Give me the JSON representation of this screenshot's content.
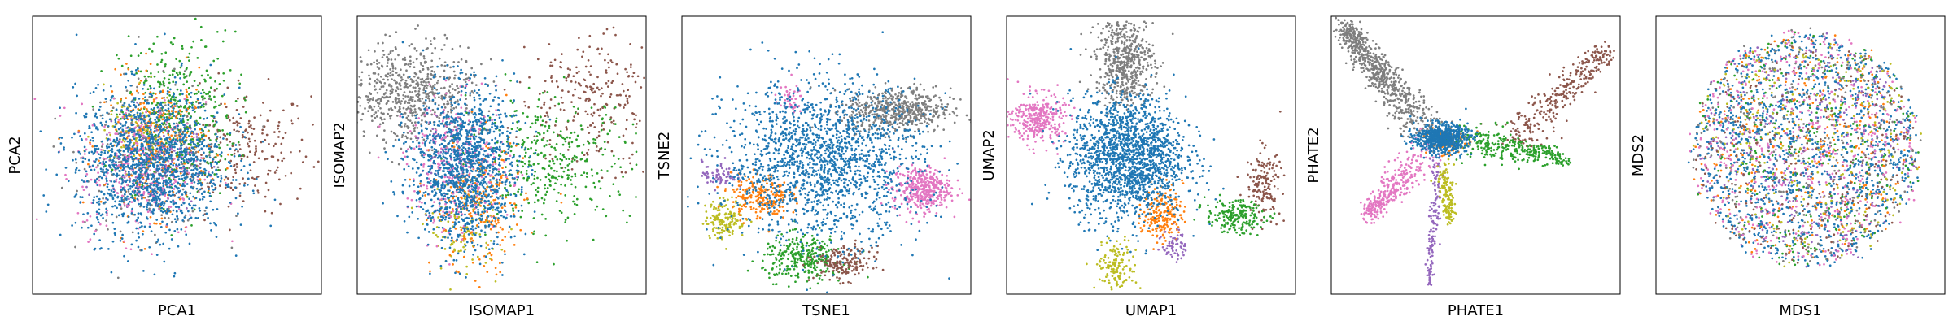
{
  "figure": {
    "palette": {
      "blue": "#1f77b4",
      "orange": "#ff7f0e",
      "green": "#2ca02c",
      "purple": "#9467bd",
      "brown": "#8c564b",
      "pink": "#e377c2",
      "gray": "#7f7f7f",
      "olive": "#bcbd22"
    }
  },
  "chart_data": [
    {
      "type": "scatter",
      "title": "",
      "xlabel": "PCA1",
      "ylabel": "PCA2",
      "xlim": [
        0,
        10
      ],
      "ylim": [
        0,
        10
      ],
      "grid": false,
      "legend": "none",
      "ticks": "hidden",
      "clusters": [
        {
          "color": "brown",
          "cx": 7.2,
          "cy": 5.2,
          "sx": 1.2,
          "sy": 1.1,
          "n": 240
        },
        {
          "color": "gray",
          "cx": 4.2,
          "cy": 5.0,
          "sx": 1.2,
          "sy": 1.3,
          "n": 300
        },
        {
          "color": "green",
          "cx": 5.0,
          "cy": 6.4,
          "sx": 1.0,
          "sy": 1.5,
          "n": 420
        },
        {
          "color": "orange",
          "cx": 4.3,
          "cy": 5.4,
          "sx": 0.9,
          "sy": 1.2,
          "n": 330
        },
        {
          "color": "olive",
          "cx": 3.5,
          "cy": 5.8,
          "sx": 0.7,
          "sy": 0.7,
          "n": 90
        },
        {
          "color": "purple",
          "cx": 4.0,
          "cy": 4.8,
          "sx": 0.8,
          "sy": 0.8,
          "n": 130
        },
        {
          "color": "pink",
          "cx": 3.8,
          "cy": 4.5,
          "sx": 1.1,
          "sy": 1.2,
          "n": 320
        },
        {
          "color": "blue",
          "cx": 4.1,
          "cy": 4.7,
          "sx": 1.3,
          "sy": 1.3,
          "n": 1400
        }
      ]
    },
    {
      "type": "scatter",
      "title": "",
      "xlabel": "ISOMAP1",
      "ylabel": "ISOMAP2",
      "xlim": [
        0,
        10
      ],
      "ylim": [
        0,
        10
      ],
      "grid": false,
      "legend": "none",
      "ticks": "hidden",
      "clusters": [
        {
          "color": "gray",
          "cx": 1.9,
          "cy": 7.2,
          "sx": 1.1,
          "sy": 0.9,
          "n": 650
        },
        {
          "color": "brown",
          "cx": 8.0,
          "cy": 7.0,
          "sx": 1.2,
          "sy": 1.2,
          "n": 260
        },
        {
          "color": "green",
          "cx": 6.7,
          "cy": 4.8,
          "sx": 1.4,
          "sy": 1.1,
          "n": 380
        },
        {
          "color": "olive",
          "cx": 3.7,
          "cy": 2.4,
          "sx": 0.6,
          "sy": 0.8,
          "n": 120
        },
        {
          "color": "orange",
          "cx": 4.2,
          "cy": 3.2,
          "sx": 0.8,
          "sy": 1.2,
          "n": 260
        },
        {
          "color": "purple",
          "cx": 3.2,
          "cy": 5.0,
          "sx": 0.6,
          "sy": 0.6,
          "n": 60
        },
        {
          "color": "pink",
          "cx": 3.5,
          "cy": 4.6,
          "sx": 0.9,
          "sy": 1.2,
          "n": 300
        },
        {
          "color": "blue",
          "cx": 3.7,
          "cy": 4.6,
          "sx": 0.9,
          "sy": 1.4,
          "n": 1300
        }
      ]
    },
    {
      "type": "scatter",
      "title": "",
      "xlabel": "TSNE1",
      "ylabel": "TSNE2",
      "xlim": [
        0,
        10
      ],
      "ylim": [
        0,
        10
      ],
      "grid": false,
      "legend": "none",
      "ticks": "hidden",
      "clusters": [
        {
          "color": "gray",
          "cx": 7.5,
          "cy": 6.6,
          "sx": 0.9,
          "sy": 0.4,
          "n": 550
        },
        {
          "color": "pink",
          "cx": 8.3,
          "cy": 3.8,
          "sx": 0.5,
          "sy": 0.4,
          "n": 400
        },
        {
          "color": "pink",
          "cx": 3.7,
          "cy": 7.0,
          "sx": 0.25,
          "sy": 0.25,
          "n": 40
        },
        {
          "color": "purple",
          "cx": 1.3,
          "cy": 4.3,
          "sx": 0.3,
          "sy": 0.25,
          "n": 70
        },
        {
          "color": "olive",
          "cx": 1.5,
          "cy": 2.7,
          "sx": 0.35,
          "sy": 0.35,
          "n": 150
        },
        {
          "color": "orange",
          "cx": 2.7,
          "cy": 3.5,
          "sx": 0.5,
          "sy": 0.4,
          "n": 220
        },
        {
          "color": "green",
          "cx": 4.2,
          "cy": 1.3,
          "sx": 0.7,
          "sy": 0.4,
          "n": 300
        },
        {
          "color": "brown",
          "cx": 5.6,
          "cy": 1.1,
          "sx": 0.5,
          "sy": 0.3,
          "n": 180
        },
        {
          "color": "blue",
          "cx": 4.9,
          "cy": 4.8,
          "sx": 1.7,
          "sy": 1.4,
          "n": 1700
        }
      ]
    },
    {
      "type": "scatter",
      "title": "",
      "xlabel": "UMAP1",
      "ylabel": "UMAP2",
      "xlim": [
        0,
        10
      ],
      "ylim": [
        0,
        10
      ],
      "grid": false,
      "legend": "none",
      "ticks": "hidden",
      "clusters": [
        {
          "color": "gray",
          "cx": 4.1,
          "cy": 8.4,
          "sx": 0.5,
          "sy": 0.8,
          "n": 560
        },
        {
          "color": "pink",
          "cx": 1.1,
          "cy": 6.3,
          "sx": 0.45,
          "sy": 0.45,
          "n": 320
        },
        {
          "color": "brown",
          "cx": 8.9,
          "cy": 4.0,
          "sx": 0.3,
          "sy": 0.6,
          "n": 150
        },
        {
          "color": "green",
          "cx": 7.9,
          "cy": 2.8,
          "sx": 0.5,
          "sy": 0.3,
          "n": 200
        },
        {
          "color": "orange",
          "cx": 5.4,
          "cy": 2.9,
          "sx": 0.35,
          "sy": 0.5,
          "n": 200
        },
        {
          "color": "purple",
          "cx": 5.8,
          "cy": 1.8,
          "sx": 0.2,
          "sy": 0.3,
          "n": 60
        },
        {
          "color": "olive",
          "cx": 3.8,
          "cy": 1.0,
          "sx": 0.35,
          "sy": 0.45,
          "n": 140
        },
        {
          "color": "blue",
          "cx": 4.2,
          "cy": 4.9,
          "sx": 1.0,
          "sy": 1.1,
          "n": 1700
        }
      ]
    },
    {
      "type": "scatter",
      "title": "",
      "xlabel": "PHATE1",
      "ylabel": "PHATE2",
      "xlim": [
        0,
        10
      ],
      "ylim": [
        0,
        10
      ],
      "grid": false,
      "legend": "none",
      "ticks": "hidden",
      "branches": [
        {
          "color": "gray",
          "from": [
            3.4,
            5.8
          ],
          "to": [
            0.4,
            9.6
          ],
          "spread": 0.35,
          "n": 700
        },
        {
          "color": "brown",
          "from": [
            6.2,
            5.4
          ],
          "to": [
            9.5,
            8.8
          ],
          "spread": 0.35,
          "n": 300
        },
        {
          "color": "green",
          "from": [
            4.2,
            5.7
          ],
          "to": [
            8.1,
            4.9
          ],
          "spread": 0.3,
          "n": 320
        },
        {
          "color": "pink",
          "from": [
            3.3,
            5.1
          ],
          "to": [
            1.2,
            2.8
          ],
          "spread": 0.3,
          "n": 320
        },
        {
          "color": "purple",
          "from": [
            3.7,
            5.0
          ],
          "to": [
            3.4,
            0.3
          ],
          "spread": 0.1,
          "n": 140
        },
        {
          "color": "olive",
          "from": [
            3.9,
            4.7
          ],
          "to": [
            4.1,
            2.6
          ],
          "spread": 0.15,
          "n": 140
        }
      ],
      "clusters": [
        {
          "color": "orange",
          "cx": 3.9,
          "cy": 5.5,
          "sx": 0.35,
          "sy": 0.3,
          "n": 90
        },
        {
          "color": "blue",
          "cx": 3.8,
          "cy": 5.6,
          "sx": 0.45,
          "sy": 0.25,
          "n": 700
        }
      ]
    },
    {
      "type": "scatter",
      "title": "",
      "xlabel": "MDS1",
      "ylabel": "MDS2",
      "xlim": [
        0,
        10
      ],
      "ylim": [
        0,
        10
      ],
      "grid": false,
      "legend": "none",
      "ticks": "hidden",
      "disc": {
        "cx": 5.2,
        "cy": 5.2,
        "rx": 3.8,
        "ry": 4.1,
        "n": 3400,
        "mix": [
          "blue",
          "blue",
          "blue",
          "blue",
          "orange",
          "green",
          "pink",
          "pink",
          "gray",
          "brown",
          "purple",
          "olive"
        ]
      }
    }
  ]
}
